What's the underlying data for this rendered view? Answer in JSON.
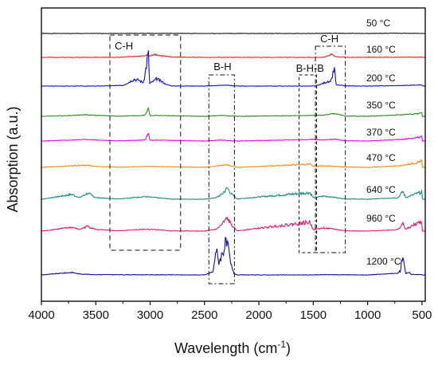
{
  "chart_data": {
    "type": "line",
    "title": "",
    "xlabel": "Wavelength (cm",
    "xlabel_sup": "-1",
    "xlabel_close": ")",
    "ylabel": "Absorption (a.u.)",
    "xlim": [
      4000,
      470
    ],
    "x_reversed": true,
    "x_ticks": [
      "4000",
      "3500",
      "3000",
      "2500",
      "2000",
      "1500",
      "1000",
      "500"
    ],
    "y_ticks": [],
    "grid": false,
    "legend": "inline labels at right",
    "series": [
      {
        "name": "50 °C",
        "color": "#111111",
        "points": [
          [
            4000,
            0.0
          ],
          [
            3500,
            0.0
          ],
          [
            3000,
            0.03
          ],
          [
            2500,
            0.0
          ],
          [
            1500,
            0.0
          ],
          [
            1300,
            0.06
          ],
          [
            1000,
            0.0
          ],
          [
            700,
            0.08
          ],
          [
            600,
            0.02
          ],
          [
            500,
            0.05
          ]
        ]
      },
      {
        "name": "160 °C",
        "color": "#e8201a",
        "points": [
          [
            4000,
            0.0
          ],
          [
            3300,
            0.02
          ],
          [
            3150,
            0.3
          ],
          [
            3050,
            0.45
          ],
          [
            3020,
            0.8
          ],
          [
            3005,
            0.4
          ],
          [
            2960,
            0.9
          ],
          [
            2900,
            0.5
          ],
          [
            2800,
            0.1
          ],
          [
            2500,
            0.0
          ],
          [
            1500,
            0.0
          ],
          [
            1400,
            0.05
          ],
          [
            1330,
            1.0
          ],
          [
            1300,
            0.25
          ],
          [
            1200,
            0.0
          ],
          [
            700,
            0.05
          ],
          [
            500,
            0.05
          ]
        ]
      },
      {
        "name": "200 °C",
        "color": "#1010c8",
        "points": [
          [
            4000,
            0.0
          ],
          [
            3500,
            0.0
          ],
          [
            3250,
            0.2
          ],
          [
            3180,
            1.5
          ],
          [
            3150,
            2.2
          ],
          [
            3100,
            1.8
          ],
          [
            3060,
            1.0
          ],
          [
            3017,
            10.5
          ],
          [
            3005,
            0.8
          ],
          [
            2970,
            1.5
          ],
          [
            2940,
            2.3
          ],
          [
            2900,
            1.5
          ],
          [
            2850,
            0.5
          ],
          [
            2800,
            0.05
          ],
          [
            2500,
            0.0
          ],
          [
            2300,
            0.3
          ],
          [
            2200,
            0.0
          ],
          [
            1500,
            0.0
          ],
          [
            1450,
            0.3
          ],
          [
            1380,
            1.3
          ],
          [
            1340,
            1.2
          ],
          [
            1306,
            5.5
          ],
          [
            1290,
            0.4
          ],
          [
            1200,
            0.05
          ],
          [
            1000,
            0.0
          ],
          [
            700,
            0.15
          ],
          [
            500,
            0.4
          ]
        ]
      },
      {
        "name": "350 °C",
        "color": "#2a8a20",
        "points": [
          [
            4000,
            0.0
          ],
          [
            3720,
            0.3
          ],
          [
            3600,
            0.5
          ],
          [
            3300,
            0.05
          ],
          [
            3050,
            0.3
          ],
          [
            3017,
            2.5
          ],
          [
            3000,
            0.2
          ],
          [
            2950,
            0.3
          ],
          [
            2500,
            0.0
          ],
          [
            2350,
            0.3
          ],
          [
            2200,
            0.0
          ],
          [
            1500,
            0.3
          ],
          [
            1400,
            0.4
          ],
          [
            1306,
            0.9
          ],
          [
            1200,
            0.1
          ],
          [
            1000,
            0.0
          ],
          [
            700,
            0.5
          ],
          [
            550,
            0.8
          ],
          [
            500,
            1.2
          ]
        ]
      },
      {
        "name": "370 °C",
        "color": "#e800e8",
        "points": [
          [
            4000,
            0.0
          ],
          [
            3720,
            0.3
          ],
          [
            3600,
            0.5
          ],
          [
            3300,
            0.05
          ],
          [
            3050,
            0.3
          ],
          [
            3017,
            2.3
          ],
          [
            3000,
            0.2
          ],
          [
            2950,
            0.3
          ],
          [
            2500,
            0.0
          ],
          [
            2350,
            0.3
          ],
          [
            2200,
            0.0
          ],
          [
            1500,
            0.5
          ],
          [
            1400,
            0.3
          ],
          [
            1306,
            0.6
          ],
          [
            1200,
            0.1
          ],
          [
            1000,
            0.0
          ],
          [
            700,
            0.5
          ],
          [
            550,
            1.0
          ],
          [
            500,
            1.5
          ]
        ]
      },
      {
        "name": "470 °C",
        "color": "#f08c10",
        "points": [
          [
            4000,
            0.0
          ],
          [
            3720,
            0.5
          ],
          [
            3600,
            0.7
          ],
          [
            3500,
            0.3
          ],
          [
            3300,
            0.05
          ],
          [
            3050,
            0.3
          ],
          [
            3000,
            0.3
          ],
          [
            2500,
            0.0
          ],
          [
            2300,
            0.8
          ],
          [
            2200,
            0.0
          ],
          [
            1530,
            1.0
          ],
          [
            1500,
            0.3
          ],
          [
            1400,
            0.5
          ],
          [
            1200,
            0.1
          ],
          [
            1000,
            0.0
          ],
          [
            700,
            0.5
          ],
          [
            550,
            1.5
          ],
          [
            500,
            2.0
          ]
        ]
      },
      {
        "name": "640 °C",
        "color": "#1a8a80",
        "points": [
          [
            4000,
            0.0
          ],
          [
            3720,
            1.5
          ],
          [
            3650,
            0.5
          ],
          [
            3580,
            1.8
          ],
          [
            3550,
            1.5
          ],
          [
            3500,
            0.5
          ],
          [
            3300,
            0.1
          ],
          [
            3050,
            0.8
          ],
          [
            2950,
            0.5
          ],
          [
            2800,
            0.05
          ],
          [
            2500,
            0.0
          ],
          [
            2390,
            0.5
          ],
          [
            2340,
            1.6
          ],
          [
            2290,
            3.5
          ],
          [
            2250,
            1.6
          ],
          [
            2200,
            0.1
          ],
          [
            1530,
            2.1
          ],
          [
            1500,
            0.5
          ],
          [
            1400,
            1.0
          ],
          [
            1200,
            0.1
          ],
          [
            1000,
            0.0
          ],
          [
            720,
            0.5
          ],
          [
            675,
            2.5
          ],
          [
            650,
            0.5
          ],
          [
            550,
            1.8
          ],
          [
            500,
            2.2
          ]
        ]
      },
      {
        "name": "960 °C",
        "color": "#e8186e",
        "points": [
          [
            4000,
            0.0
          ],
          [
            3720,
            1.2
          ],
          [
            3650,
            0.5
          ],
          [
            3580,
            1.5
          ],
          [
            3550,
            1.2
          ],
          [
            3500,
            0.5
          ],
          [
            3300,
            0.1
          ],
          [
            3050,
            0.6
          ],
          [
            2950,
            0.5
          ],
          [
            2800,
            0.05
          ],
          [
            2500,
            0.0
          ],
          [
            2390,
            0.6
          ],
          [
            2350,
            1.8
          ],
          [
            2290,
            4.0
          ],
          [
            2250,
            1.8
          ],
          [
            2200,
            0.1
          ],
          [
            1530,
            2.8
          ],
          [
            1500,
            0.5
          ],
          [
            1400,
            1.0
          ],
          [
            1200,
            0.1
          ],
          [
            1000,
            0.0
          ],
          [
            720,
            0.5
          ],
          [
            675,
            2.4
          ],
          [
            650,
            0.5
          ],
          [
            550,
            2.4
          ],
          [
            500,
            2.8
          ]
        ]
      },
      {
        "name": "1200 °C",
        "color": "#10109a",
        "points": [
          [
            4000,
            0.0
          ],
          [
            3720,
            0.8
          ],
          [
            3650,
            0.3
          ],
          [
            3500,
            0.1
          ],
          [
            2500,
            0.0
          ],
          [
            2420,
            1.0
          ],
          [
            2395,
            8.5
          ],
          [
            2370,
            4.0
          ],
          [
            2340,
            6.3
          ],
          [
            2310,
            9.5
          ],
          [
            2290,
            9.5
          ],
          [
            2260,
            3.5
          ],
          [
            2230,
            0.5
          ],
          [
            2200,
            0.0
          ],
          [
            1500,
            0.0
          ],
          [
            1400,
            0.1
          ],
          [
            1000,
            0.0
          ],
          [
            730,
            0.5
          ],
          [
            700,
            1.2
          ],
          [
            675,
            6.8
          ],
          [
            650,
            0.3
          ],
          [
            620,
            0.8
          ],
          [
            600,
            0.2
          ],
          [
            500,
            0.1
          ]
        ]
      }
    ],
    "annotations": [
      {
        "label": "C-H",
        "x_range": [
          3370,
          2720
        ]
      },
      {
        "label": "B-H",
        "x_range": [
          2460,
          2225
        ]
      },
      {
        "label": "B-H-B",
        "x_range": [
          1630,
          1470
        ]
      },
      {
        "label": "C-H",
        "x_range": [
          1480,
          1205
        ]
      }
    ]
  }
}
